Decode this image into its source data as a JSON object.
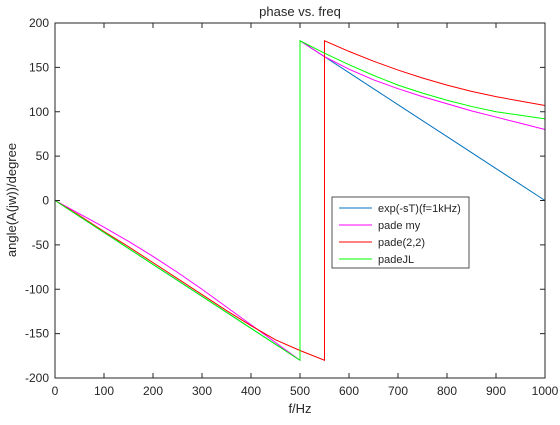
{
  "chart_data": {
    "type": "line",
    "title": "phase vs. freq",
    "xlabel": "f/Hz",
    "ylabel": "angle(A(jw))/degree",
    "xlim": [
      0,
      1000
    ],
    "ylim": [
      -200,
      200
    ],
    "xticks": [
      0,
      100,
      200,
      300,
      400,
      500,
      600,
      700,
      800,
      900,
      1000
    ],
    "yticks": [
      -200,
      -150,
      -100,
      -50,
      0,
      50,
      100,
      150,
      200
    ],
    "grid": false,
    "legend_position": "center-right",
    "series": [
      {
        "name": "exp(-sT)(f=1kHz)",
        "color": "#0072BD",
        "x": [
          0,
          100,
          200,
          300,
          400,
          500,
          500,
          600,
          700,
          800,
          900,
          1000
        ],
        "y": [
          0,
          -36,
          -72,
          -108,
          -144,
          -180,
          180,
          144,
          108,
          72,
          36,
          0
        ]
      },
      {
        "name": "pade my",
        "color": "#FF00FF",
        "x": [
          0,
          50,
          100,
          150,
          200,
          250,
          300,
          350,
          400,
          450,
          500,
          500,
          550,
          600,
          650,
          700,
          750,
          800,
          850,
          900,
          950,
          1000
        ],
        "y": [
          0,
          -15,
          -30,
          -46,
          -63,
          -81,
          -100,
          -120,
          -140,
          -160,
          -180,
          180,
          162,
          148,
          136,
          126,
          117,
          109,
          101,
          94,
          87,
          80
        ]
      },
      {
        "name": "pade(2,2)",
        "color": "#FF0000",
        "x": [
          0,
          50,
          100,
          150,
          200,
          250,
          300,
          350,
          400,
          450,
          500,
          550,
          550,
          600,
          650,
          700,
          750,
          800,
          850,
          900,
          950,
          1000
        ],
        "y": [
          0,
          -17,
          -35,
          -52,
          -70,
          -88,
          -106,
          -124,
          -141,
          -157,
          -169,
          -180,
          180,
          168,
          157,
          147,
          138,
          130,
          123,
          117,
          112,
          107
        ]
      },
      {
        "name": "padeJL",
        "color": "#00FF00",
        "x": [
          0,
          50,
          100,
          150,
          200,
          250,
          300,
          350,
          400,
          450,
          500,
          500,
          550,
          600,
          650,
          700,
          750,
          800,
          850,
          900,
          950,
          1000
        ],
        "y": [
          0,
          -18,
          -36,
          -54,
          -72,
          -90,
          -108,
          -126,
          -144,
          -162,
          -180,
          180,
          166,
          153,
          141,
          130,
          121,
          113,
          106,
          100,
          96,
          92
        ]
      }
    ]
  }
}
